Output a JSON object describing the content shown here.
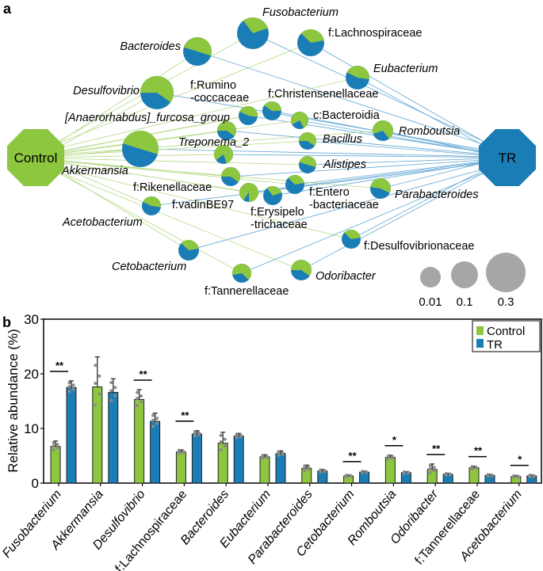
{
  "colors": {
    "control": "#8DC63F",
    "tr": "#1B7DB5",
    "control_edge": "#B5DA86",
    "tr_edge": "#5FA6D3",
    "size_legend": "#A6A6A6",
    "points": "#8A8A8A"
  },
  "panel_a": {
    "label": "a",
    "hubs": {
      "control": "Control",
      "tr": "TR"
    },
    "nodes": [
      {
        "name": [
          "Fusobacterium"
        ],
        "italic": true,
        "green_fraction": 0.3
      },
      {
        "name": [
          "f:Lachnospiraceae"
        ],
        "italic": false,
        "green_fraction": 0.35
      },
      {
        "name": [
          "Bacteroides"
        ],
        "italic": true,
        "green_fraction": 0.5
      },
      {
        "name": [
          "Eubacterium"
        ],
        "italic": true,
        "green_fraction": 0.45
      },
      {
        "name": [
          "Desulfovibrio"
        ],
        "italic": true,
        "green_fraction": 0.6
      },
      {
        "name": [
          "f:Rumino",
          "-coccaceae"
        ],
        "italic": false,
        "green_fraction": 0.45
      },
      {
        "name": [
          "f:Christensenellaceae"
        ],
        "italic": false,
        "green_fraction": 0.4
      },
      {
        "name": [
          "c:Bacteroidia"
        ],
        "italic": false,
        "green_fraction": 0.75
      },
      {
        "name": [
          "Romboutsia"
        ],
        "italic": true,
        "green_fraction": 0.7
      },
      {
        "name": [
          "[Anaerorhabdus]_furcosa_group"
        ],
        "italic": true,
        "green_fraction": 0.6
      },
      {
        "name": [
          "Akkermansia"
        ],
        "italic": true,
        "green_fraction": 0.5
      },
      {
        "name": [
          "Bacillus"
        ],
        "italic": true,
        "green_fraction": 0.6
      },
      {
        "name": [
          "Treponema_2"
        ],
        "italic": true,
        "green_fraction": 0.8
      },
      {
        "name": [
          "Alistipes"
        ],
        "italic": true,
        "green_fraction": 0.5
      },
      {
        "name": [
          "f:Rikenellaceae"
        ],
        "italic": false,
        "green_fraction": 0.6
      },
      {
        "name": [
          "f:Entero",
          "-bacteriaceae"
        ],
        "italic": false,
        "green_fraction": 0.35
      },
      {
        "name": [
          "Parabacteroides"
        ],
        "italic": true,
        "green_fraction": 0.55
      },
      {
        "name": [
          "f:vadinBE97"
        ],
        "italic": false,
        "green_fraction": 0.9
      },
      {
        "name": [
          "f:Erysipelo",
          "-trichaceae"
        ],
        "italic": false,
        "green_fraction": 0.3
      },
      {
        "name": [
          "Acetobacterium"
        ],
        "italic": true,
        "green_fraction": 0.45
      },
      {
        "name": [
          "f:Desulfovibrionaceae"
        ],
        "italic": false,
        "green_fraction": 0.35
      },
      {
        "name": [
          "Cetobacterium"
        ],
        "italic": true,
        "green_fraction": 0.35
      },
      {
        "name": [
          "Odoribacter"
        ],
        "italic": true,
        "green_fraction": 0.6
      },
      {
        "name": [
          "f:Tannerellaceae"
        ],
        "italic": false,
        "green_fraction": 0.65
      }
    ],
    "size_legend": [
      "0.01",
      "0.1",
      "0.3"
    ]
  },
  "chart_data": {
    "type": "bar",
    "panel_label": "b",
    "ylabel": "Relative abundance (%)",
    "ylim": [
      0,
      30
    ],
    "yticks": [
      "0",
      "10",
      "20",
      "30"
    ],
    "legend_position": "top-right",
    "categories": [
      "Fusobacterium",
      "Akkermansia",
      "Desulfovibrio",
      "f:Lachnospiraceae",
      "Bacteroides",
      "Eubacterium",
      "Parabacteroides",
      "Cetobacterium",
      "Romboutsia",
      "Odoribacter",
      "f:Tannerellaceae",
      "Acetobacterium"
    ],
    "category_italic": [
      true,
      true,
      true,
      false,
      true,
      true,
      true,
      true,
      true,
      true,
      false,
      true
    ],
    "series": [
      {
        "name": "Control",
        "values": [
          6.7,
          17.6,
          15.3,
          5.7,
          7.3,
          4.8,
          2.7,
          1.3,
          4.7,
          2.5,
          2.8,
          1.2
        ],
        "error": [
          1.0,
          5.5,
          1.8,
          0.4,
          2.0,
          0.4,
          0.6,
          0.2,
          0.4,
          1.0,
          0.3,
          0.2
        ]
      },
      {
        "name": "TR",
        "values": [
          17.5,
          16.6,
          11.3,
          9.0,
          8.6,
          5.4,
          2.2,
          2.0,
          1.9,
          1.6,
          1.4,
          1.3
        ],
        "error": [
          1.2,
          2.5,
          1.5,
          0.6,
          0.5,
          0.5,
          0.3,
          0.2,
          0.2,
          0.2,
          0.2,
          0.2
        ]
      }
    ],
    "significance": [
      "**",
      "",
      "**",
      "**",
      "",
      "",
      "",
      "**",
      "*",
      "**",
      "**",
      "*"
    ]
  }
}
